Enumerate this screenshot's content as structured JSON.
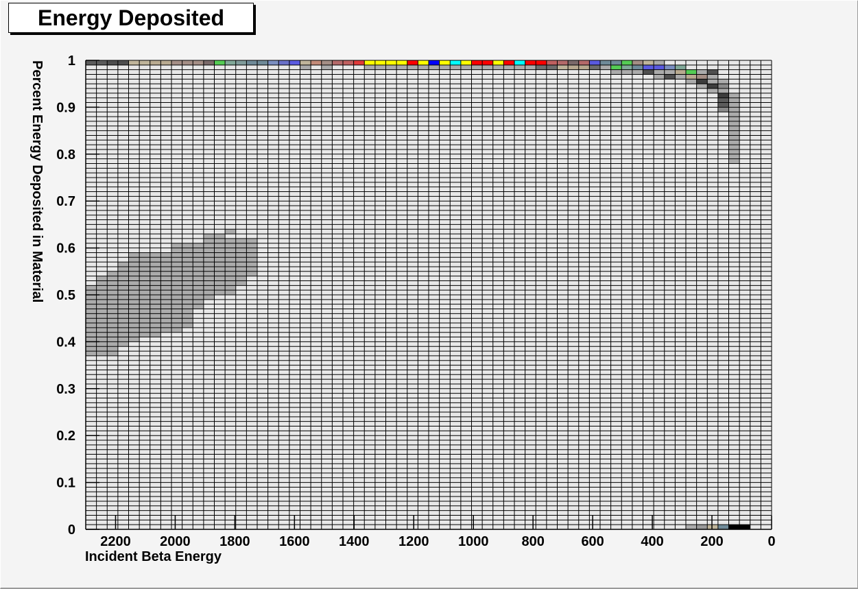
{
  "chart_data": {
    "type": "heatmap",
    "title": "Energy Deposited",
    "xlabel": "Incident Beta Energy",
    "ylabel": "Percent Energy Deposited in Material",
    "xlim": [
      2300,
      0
    ],
    "ylim": [
      0,
      1
    ],
    "x_reversed": true,
    "x_bins": 55,
    "y_bins": 100,
    "x_ticks": [
      "2200",
      "2000",
      "1800",
      "1600",
      "1400",
      "1200",
      "1000",
      "800",
      "600",
      "400",
      "200",
      "0"
    ],
    "x_tick_values": [
      2200,
      2000,
      1800,
      1600,
      1400,
      1200,
      1000,
      800,
      600,
      400,
      200,
      0
    ],
    "y_ticks": [
      "0",
      "0.1",
      "0.2",
      "0.3",
      "0.4",
      "0.5",
      "0.6",
      "0.7",
      "0.8",
      "0.9",
      "1"
    ],
    "y_tick_values": [
      0,
      0.1,
      0.2,
      0.3,
      0.4,
      0.5,
      0.6,
      0.7,
      0.8,
      0.9,
      1.0
    ],
    "grid": true,
    "colors": {
      "background": "#f4f4f4",
      "cell_empty": "#e8e8e8",
      "grid": "#000000",
      "palette": {
        "a": "#ababab",
        "b": "#999999",
        "c": "#4f4f4f",
        "d": "#5c5c5c",
        "e": "#6e6e6e",
        "f": "#c9c1a2",
        "g": "#bfb49a",
        "h": "#b8aa90",
        "i": "#a48e85",
        "j": "#7a6a6a",
        "k": "#55cc55",
        "l": "#80a898",
        "m": "#7f9b9a",
        "n": "#6f8a98",
        "o": "#7a8ec0",
        "p": "#6a70c8",
        "q": "#5a5ae0",
        "r": "#c28a78",
        "s": "#b46a6a",
        "t": "#c06060",
        "u": "#e03a3a",
        "v": "#ffff00",
        "w": "#ff0000",
        "x": "#0000ff",
        "y": "#00ffff",
        "z": "#000000",
        "A": "#8a8a8a",
        "B": "#3c3c3c",
        "C": "#5580e0"
      }
    },
    "cells": [
      {
        "y": 0.995,
        "bins": [
          [
            0,
            "d"
          ],
          [
            1,
            "d"
          ],
          [
            2,
            "c"
          ],
          [
            3,
            "c"
          ],
          [
            4,
            "g"
          ],
          [
            5,
            "g"
          ],
          [
            6,
            "h"
          ],
          [
            7,
            "h"
          ],
          [
            8,
            "i"
          ],
          [
            9,
            "i"
          ],
          [
            10,
            "i"
          ],
          [
            11,
            "j"
          ],
          [
            12,
            "k"
          ],
          [
            13,
            "l"
          ],
          [
            14,
            "m"
          ],
          [
            15,
            "n"
          ],
          [
            16,
            "n"
          ],
          [
            17,
            "o"
          ],
          [
            18,
            "p"
          ],
          [
            19,
            "q"
          ],
          [
            20,
            "g"
          ],
          [
            21,
            "r"
          ],
          [
            22,
            "i"
          ],
          [
            23,
            "s"
          ],
          [
            24,
            "t"
          ],
          [
            25,
            "u"
          ],
          [
            26,
            "v"
          ],
          [
            27,
            "v"
          ],
          [
            28,
            "v"
          ],
          [
            29,
            "v"
          ],
          [
            30,
            "w"
          ],
          [
            31,
            "v"
          ],
          [
            32,
            "x"
          ],
          [
            33,
            "v"
          ],
          [
            34,
            "y"
          ],
          [
            35,
            "v"
          ],
          [
            36,
            "w"
          ],
          [
            37,
            "w"
          ],
          [
            38,
            "v"
          ],
          [
            39,
            "w"
          ],
          [
            40,
            "y"
          ],
          [
            41,
            "w"
          ],
          [
            42,
            "w"
          ],
          [
            43,
            "t"
          ],
          [
            44,
            "s"
          ],
          [
            45,
            "j"
          ],
          [
            46,
            "s"
          ],
          [
            47,
            "q"
          ],
          [
            48,
            "n"
          ],
          [
            49,
            "n"
          ],
          [
            50,
            "k"
          ],
          [
            51,
            "i"
          ],
          [
            52,
            "g"
          ],
          [
            53,
            "a"
          ]
        ]
      },
      {
        "y": 0.985,
        "bins": [
          [
            20,
            "a"
          ],
          [
            22,
            "a"
          ],
          [
            26,
            "a"
          ],
          [
            27,
            "a"
          ],
          [
            28,
            "a"
          ],
          [
            29,
            "a"
          ],
          [
            30,
            "a"
          ],
          [
            31,
            "a"
          ],
          [
            32,
            "a"
          ],
          [
            33,
            "a"
          ],
          [
            34,
            "a"
          ],
          [
            35,
            "a"
          ],
          [
            36,
            "a"
          ],
          [
            37,
            "a"
          ],
          [
            38,
            "a"
          ],
          [
            39,
            "a"
          ],
          [
            40,
            "a"
          ],
          [
            41,
            "a"
          ],
          [
            42,
            "e"
          ],
          [
            43,
            "e"
          ],
          [
            44,
            "g"
          ],
          [
            45,
            "h"
          ],
          [
            46,
            "h"
          ],
          [
            47,
            "e"
          ],
          [
            48,
            "a"
          ],
          [
            49,
            "k"
          ],
          [
            50,
            "l"
          ],
          [
            51,
            "n"
          ],
          [
            52,
            "q"
          ],
          [
            53,
            "q"
          ],
          [
            54,
            "o"
          ],
          [
            55,
            "l"
          ]
        ]
      },
      {
        "y": 0.975,
        "bins": [
          [
            49,
            "a"
          ],
          [
            50,
            "a"
          ],
          [
            51,
            "a"
          ],
          [
            52,
            "c"
          ],
          [
            53,
            "a"
          ],
          [
            54,
            "a"
          ],
          [
            55,
            "h"
          ],
          [
            56,
            "k"
          ],
          [
            57,
            "a"
          ],
          [
            58,
            "c"
          ]
        ]
      },
      {
        "y": 0.965,
        "bins": [
          [
            53,
            "a"
          ],
          [
            54,
            "c"
          ],
          [
            55,
            "a"
          ],
          [
            56,
            "h"
          ],
          [
            57,
            "i"
          ],
          [
            58,
            "a"
          ]
        ]
      },
      {
        "y": 0.955,
        "bins": [
          [
            56,
            "a"
          ],
          [
            57,
            "B"
          ],
          [
            58,
            "a"
          ],
          [
            59,
            "a"
          ]
        ]
      },
      {
        "y": 0.945,
        "bins": [
          [
            57,
            "a"
          ],
          [
            58,
            "B"
          ],
          [
            59,
            "A"
          ]
        ]
      },
      {
        "y": 0.935,
        "bins": [
          [
            58,
            "a"
          ],
          [
            59,
            "a"
          ]
        ]
      },
      {
        "y": 0.925,
        "bins": [
          [
            59,
            "B"
          ],
          [
            60,
            "a"
          ]
        ]
      },
      {
        "y": 0.915,
        "bins": [
          [
            59,
            "d"
          ],
          [
            60,
            "a"
          ]
        ]
      },
      {
        "y": 0.905,
        "bins": [
          [
            59,
            "d"
          ],
          [
            60,
            "a"
          ]
        ]
      },
      {
        "y": 0.895,
        "bins": [
          [
            59,
            "A"
          ],
          [
            60,
            "a"
          ]
        ]
      },
      {
        "y": 0.885,
        "bins": [
          [
            60,
            "a"
          ]
        ]
      },
      {
        "y": 0.875,
        "bins": [
          [
            60,
            "a"
          ]
        ]
      },
      {
        "y": 0.865,
        "bins": [
          [
            60,
            "a"
          ]
        ]
      },
      {
        "y": 0.855,
        "bins": [
          [
            60,
            "a"
          ]
        ]
      },
      {
        "y": 0.845,
        "bins": [
          [
            60,
            "a"
          ]
        ]
      },
      {
        "y": 0.835,
        "bins": [
          [
            60,
            "a"
          ]
        ]
      },
      {
        "y": 0.825,
        "bins": [
          [
            60,
            "a"
          ]
        ]
      },
      {
        "y": 0.815,
        "bins": [
          [
            60,
            "a"
          ]
        ]
      },
      {
        "y": 0.805,
        "bins": [
          [
            60,
            "a"
          ]
        ]
      },
      {
        "y": 0.795,
        "bins": [
          [
            60,
            "a"
          ]
        ]
      },
      {
        "y": 0.785,
        "bins": [
          [
            60,
            "a"
          ]
        ]
      }
    ],
    "blob": {
      "color": "#ababab",
      "rows": [
        {
          "y": 0.635,
          "from": 13,
          "to": 13
        },
        {
          "y": 0.625,
          "from": 11,
          "to": 12
        },
        {
          "y": 0.615,
          "from": 11,
          "to": 15
        },
        {
          "y": 0.605,
          "from": 8,
          "to": 15
        },
        {
          "y": 0.595,
          "from": 8,
          "to": 15
        },
        {
          "y": 0.585,
          "from": 4,
          "to": 15
        },
        {
          "y": 0.575,
          "from": 4,
          "to": 15
        },
        {
          "y": 0.565,
          "from": 3,
          "to": 15
        },
        {
          "y": 0.555,
          "from": 3,
          "to": 15
        },
        {
          "y": 0.545,
          "from": 2,
          "to": 15
        },
        {
          "y": 0.535,
          "from": 1,
          "to": 14
        },
        {
          "y": 0.525,
          "from": 1,
          "to": 14
        },
        {
          "y": 0.515,
          "from": 0,
          "to": 13
        },
        {
          "y": 0.505,
          "from": 0,
          "to": 13
        },
        {
          "y": 0.495,
          "from": 0,
          "to": 11
        },
        {
          "y": 0.485,
          "from": 0,
          "to": 10
        },
        {
          "y": 0.475,
          "from": 0,
          "to": 10
        },
        {
          "y": 0.465,
          "from": 0,
          "to": 9
        },
        {
          "y": 0.455,
          "from": 0,
          "to": 9
        },
        {
          "y": 0.445,
          "from": 0,
          "to": 9
        },
        {
          "y": 0.435,
          "from": 0,
          "to": 9
        },
        {
          "y": 0.425,
          "from": 0,
          "to": 8
        },
        {
          "y": 0.415,
          "from": 0,
          "to": 6
        },
        {
          "y": 0.405,
          "from": 0,
          "to": 4
        },
        {
          "y": 0.395,
          "from": 0,
          "to": 3
        },
        {
          "y": 0.385,
          "from": 0,
          "to": 2
        },
        {
          "y": 0.375,
          "from": 0,
          "to": 2
        }
      ]
    },
    "bottom_cells": [
      [
        56,
        "a"
      ],
      [
        57,
        "b"
      ],
      [
        58,
        "g"
      ],
      [
        59,
        "n"
      ],
      [
        60,
        "z"
      ],
      [
        61,
        "z"
      ]
    ]
  }
}
